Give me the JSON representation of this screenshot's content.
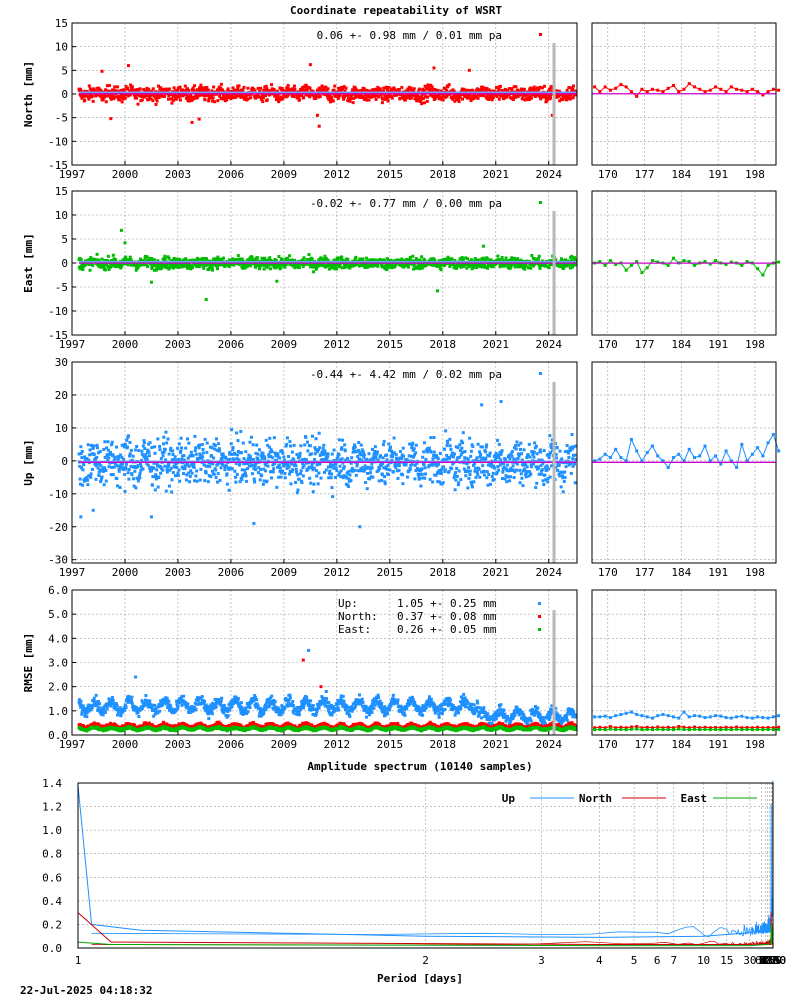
{
  "page_title": "Coordinate repeatability of WSRT",
  "timestamp": "22-Jul-2025 04:18:32",
  "colors": {
    "north": "#ff0000",
    "east": "#00bb00",
    "up": "#1e90ff",
    "trend": "#cc00cc",
    "axis": "#000000",
    "grid": "#a0a0a0"
  },
  "chart_data": [
    {
      "id": "north",
      "type": "scatter",
      "ylabel": "North [mm]",
      "ylim": [
        -15,
        15
      ],
      "yticks": [
        -15,
        -10,
        -5,
        0,
        5,
        10,
        15
      ],
      "xlim": [
        1997,
        2025.6
      ],
      "xticks": [
        1997,
        2000,
        2003,
        2006,
        2009,
        2012,
        2015,
        2018,
        2021,
        2024
      ],
      "annotation": "0.06 +- 0.98 mm /  0.01 mm pa",
      "color": "#ff0000",
      "repeatability_mm": 0.98,
      "mean_mm": 0.06,
      "rate_mm_pa": 0.01,
      "outliers": [
        [
          1998.7,
          4.8
        ],
        [
          1999.2,
          -5.2
        ],
        [
          2000.2,
          6.0
        ],
        [
          2003.8,
          -6.0
        ],
        [
          2004.2,
          -5.3
        ],
        [
          2010.5,
          6.2
        ],
        [
          2010.9,
          -4.5
        ],
        [
          2011.0,
          -6.8
        ],
        [
          2017.5,
          5.5
        ],
        [
          2019.5,
          5.0
        ],
        [
          2024.2,
          -4.5
        ]
      ],
      "recent": {
        "xlim": [
          167,
          202
        ],
        "xticks": [
          170,
          177,
          184,
          191,
          198
        ],
        "values": [
          1.5,
          0.5,
          1.5,
          0.8,
          1.2,
          2.0,
          1.5,
          0.5,
          -0.5,
          1.0,
          0.5,
          1.0,
          0.8,
          0.5,
          1.2,
          1.8,
          0.5,
          1.0,
          2.2,
          1.5,
          1.0,
          0.5,
          0.8,
          1.5,
          1.0,
          0.5,
          1.5,
          1.0,
          0.8,
          0.5,
          1.0,
          0.5,
          -0.2,
          0.5,
          1.0,
          0.8
        ]
      }
    },
    {
      "id": "east",
      "type": "scatter",
      "ylabel": "East [mm]",
      "ylim": [
        -15,
        15
      ],
      "yticks": [
        -15,
        -10,
        -5,
        0,
        5,
        10,
        15
      ],
      "xlim": [
        1997,
        2025.6
      ],
      "xticks": [
        1997,
        2000,
        2003,
        2006,
        2009,
        2012,
        2015,
        2018,
        2021,
        2024
      ],
      "annotation": "-0.02 +- 0.77 mm /  0.00 mm pa",
      "color": "#00bb00",
      "repeatability_mm": 0.77,
      "mean_mm": -0.02,
      "rate_mm_pa": 0.0,
      "outliers": [
        [
          1999.8,
          6.8
        ],
        [
          2000.0,
          4.2
        ],
        [
          2001.5,
          -4.0
        ],
        [
          2004.6,
          -7.6
        ],
        [
          2008.6,
          -3.8
        ],
        [
          2017.7,
          -5.8
        ],
        [
          2020.3,
          3.5
        ]
      ],
      "recent": {
        "xlim": [
          167,
          202
        ],
        "xticks": [
          170,
          177,
          184,
          191,
          198
        ],
        "values": [
          0.0,
          0.3,
          -0.5,
          0.5,
          -0.3,
          0.0,
          -1.5,
          -0.5,
          0.3,
          -2.0,
          -1.0,
          0.5,
          0.2,
          0.0,
          -0.5,
          1.0,
          0.0,
          0.5,
          0.3,
          -0.5,
          0.0,
          0.3,
          -0.2,
          0.5,
          0.0,
          -0.3,
          0.2,
          0.0,
          -0.5,
          0.3,
          0.0,
          -1.2,
          -2.5,
          -0.5,
          0.0,
          0.2
        ]
      }
    },
    {
      "id": "up",
      "type": "scatter",
      "ylabel": "Up [mm]",
      "ylim": [
        -31,
        30
      ],
      "yticks": [
        -30,
        -20,
        -10,
        0,
        10,
        20,
        30
      ],
      "xlim": [
        1997,
        2025.6
      ],
      "xticks": [
        1997,
        2000,
        2003,
        2006,
        2009,
        2012,
        2015,
        2018,
        2021,
        2024
      ],
      "annotation": "-0.44 +- 4.42 mm /  0.02 mm pa",
      "color": "#1e90ff",
      "repeatability_mm": 4.42,
      "mean_mm": -0.44,
      "rate_mm_pa": 0.02,
      "outliers": [
        [
          1997.5,
          -17.0
        ],
        [
          1998.2,
          -15.0
        ],
        [
          2001.5,
          -17.0
        ],
        [
          2007.3,
          -19.0
        ],
        [
          2013.3,
          -20.0
        ],
        [
          2020.2,
          17.0
        ],
        [
          2021.3,
          18.0
        ],
        [
          2024.3,
          -12.0
        ]
      ],
      "recent": {
        "xlim": [
          167,
          202
        ],
        "xticks": [
          170,
          177,
          184,
          191,
          198
        ],
        "values": [
          0.0,
          0.5,
          2.0,
          1.0,
          3.5,
          1.0,
          0.0,
          6.5,
          3.0,
          0.0,
          2.5,
          4.5,
          1.5,
          0.0,
          -2.0,
          1.0,
          2.0,
          0.0,
          3.5,
          1.0,
          1.5,
          4.5,
          0.0,
          1.5,
          -1.0,
          3.0,
          0.0,
          -2.0,
          5.0,
          0.0,
          2.0,
          4.0,
          1.5,
          5.5,
          8.0,
          3.0
        ]
      }
    },
    {
      "id": "rmse",
      "type": "scatter",
      "ylabel": "RMSE [mm]",
      "ylim": [
        0,
        6
      ],
      "yticks": [
        0.0,
        1.0,
        2.0,
        3.0,
        4.0,
        5.0,
        6.0
      ],
      "ytick_labels": [
        "0.0",
        "1.0",
        "2.0",
        "3.0",
        "4.0",
        "5.0",
        "6.0"
      ],
      "xlim": [
        1997,
        2025.6
      ],
      "xticks": [
        1997,
        2000,
        2003,
        2006,
        2009,
        2012,
        2015,
        2018,
        2021,
        2024
      ],
      "legend": [
        {
          "name": "Up:",
          "value": "1.05 +- 0.25 mm",
          "color": "#1e90ff"
        },
        {
          "name": "North:",
          "value": "0.37 +- 0.08 mm",
          "color": "#ff0000"
        },
        {
          "name": "East:",
          "value": "0.26 +- 0.05 mm",
          "color": "#00bb00"
        }
      ],
      "series": [
        {
          "name": "Up",
          "color": "#1e90ff",
          "mean": 1.05,
          "sd": 0.25
        },
        {
          "name": "North",
          "color": "#ff0000",
          "mean": 0.37,
          "sd": 0.08
        },
        {
          "name": "East",
          "color": "#00bb00",
          "mean": 0.26,
          "sd": 0.05
        }
      ],
      "outliers": [
        [
          2010.1,
          3.1,
          "#ff0000"
        ],
        [
          2010.4,
          3.5,
          "#1e90ff"
        ],
        [
          2011.1,
          2.0,
          "#ff0000"
        ],
        [
          2011.4,
          1.8,
          "#1e90ff"
        ],
        [
          2000.6,
          2.4,
          "#1e90ff"
        ]
      ],
      "recent": {
        "xlim": [
          167,
          202
        ],
        "xticks": [
          170,
          177,
          184,
          191,
          198
        ],
        "up": [
          0.75,
          0.75,
          0.78,
          0.72,
          0.8,
          0.85,
          0.9,
          0.95,
          0.85,
          0.8,
          0.75,
          0.7,
          0.8,
          0.85,
          0.8,
          0.75,
          0.7,
          0.95,
          0.75,
          0.8,
          0.78,
          0.72,
          0.75,
          0.8,
          0.78,
          0.72,
          0.7,
          0.75,
          0.78,
          0.72,
          0.7,
          0.75,
          0.72,
          0.7,
          0.75,
          0.8
        ],
        "north": [
          0.3,
          0.32,
          0.3,
          0.35,
          0.3,
          0.32,
          0.3,
          0.33,
          0.35,
          0.3,
          0.32,
          0.3,
          0.33,
          0.3,
          0.32,
          0.3,
          0.35,
          0.32,
          0.3,
          0.33,
          0.3,
          0.32,
          0.3,
          0.31,
          0.3,
          0.32,
          0.3,
          0.33,
          0.3,
          0.31,
          0.3,
          0.32,
          0.3,
          0.31,
          0.3,
          0.32
        ],
        "east": [
          0.22,
          0.23,
          0.22,
          0.25,
          0.22,
          0.23,
          0.22,
          0.24,
          0.25,
          0.22,
          0.23,
          0.22,
          0.24,
          0.22,
          0.23,
          0.22,
          0.25,
          0.23,
          0.22,
          0.24,
          0.22,
          0.23,
          0.22,
          0.23,
          0.22,
          0.23,
          0.22,
          0.24,
          0.22,
          0.23,
          0.22,
          0.23,
          0.22,
          0.23,
          0.22,
          0.23
        ]
      }
    },
    {
      "id": "spectrum",
      "type": "line",
      "title": "Amplitude spectrum (10140 samples)",
      "xlabel": "Period [days]",
      "x_scale": "reciprocal",
      "xticks": [
        1,
        2,
        3,
        4,
        5,
        6,
        7,
        10,
        15,
        30,
        61,
        91,
        122,
        183,
        365,
        730,
        2190,
        4380,
        8760
      ],
      "ylim": [
        0,
        1.4
      ],
      "yticks": [
        0.0,
        0.2,
        0.4,
        0.6,
        0.8,
        1.0,
        1.2,
        1.4
      ],
      "ytick_labels": [
        "0.0",
        "0.2",
        "0.4",
        "0.6",
        "0.8",
        "1.0",
        "1.2",
        "1.4"
      ],
      "legend": [
        "Up",
        "North",
        "East"
      ],
      "series": [
        {
          "name": "Up",
          "color": "#1e90ff",
          "points": [
            [
              8760,
              1.42
            ],
            [
              6000,
              1.42
            ],
            [
              4380,
              1.38
            ],
            [
              3000,
              1.0
            ],
            [
              2500,
              0.55
            ],
            [
              2190,
              0.52
            ],
            [
              1800,
              0.45
            ],
            [
              1500,
              0.4
            ],
            [
              1300,
              0.3
            ],
            [
              1100,
              0.38
            ],
            [
              950,
              0.32
            ],
            [
              800,
              0.27
            ],
            [
              730,
              0.27
            ],
            [
              650,
              0.38
            ],
            [
              560,
              0.3
            ],
            [
              480,
              0.42
            ],
            [
              420,
              0.35
            ],
            [
              380,
              0.75
            ],
            [
              365,
              1.22
            ],
            [
              350,
              0.7
            ],
            [
              330,
              0.35
            ],
            [
              300,
              0.25
            ],
            [
              250,
              0.2
            ],
            [
              183,
              0.2
            ],
            [
              122,
              0.17
            ],
            [
              61,
              0.15
            ],
            [
              30,
              0.13
            ],
            [
              10,
              0.1
            ],
            [
              4,
              0.09
            ],
            [
              2,
              0.1
            ],
            [
              1.1,
              0.15
            ],
            [
              1.02,
              0.2
            ],
            [
              1.0,
              1.38
            ]
          ]
        },
        {
          "name": "North",
          "color": "#cc0000",
          "points": [
            [
              8760,
              0.27
            ],
            [
              6000,
              0.2
            ],
            [
              4380,
              0.16
            ],
            [
              3000,
              0.13
            ],
            [
              2190,
              0.2
            ],
            [
              1800,
              0.15
            ],
            [
              1300,
              0.1
            ],
            [
              1000,
              0.06
            ],
            [
              800,
              0.03
            ],
            [
              600,
              0.05
            ],
            [
              500,
              0.1
            ],
            [
              420,
              0.13
            ],
            [
              365,
              0.3
            ],
            [
              330,
              0.1
            ],
            [
              250,
              0.05
            ],
            [
              122,
              0.04
            ],
            [
              30,
              0.03
            ],
            [
              4,
              0.03
            ],
            [
              1.05,
              0.05
            ],
            [
              1.0,
              0.3
            ]
          ]
        },
        {
          "name": "East",
          "color": "#00aa00",
          "points": [
            [
              8760,
              0.1
            ],
            [
              6000,
              0.06
            ],
            [
              4380,
              0.04
            ],
            [
              3000,
              0.04
            ],
            [
              2190,
              0.2
            ],
            [
              1800,
              0.15
            ],
            [
              1400,
              0.07
            ],
            [
              1000,
              0.1
            ],
            [
              800,
              0.05
            ],
            [
              650,
              0.04
            ],
            [
              500,
              0.15
            ],
            [
              420,
              0.05
            ],
            [
              365,
              0.2
            ],
            [
              330,
              0.06
            ],
            [
              250,
              0.04
            ],
            [
              122,
              0.03
            ],
            [
              30,
              0.02
            ],
            [
              4,
              0.02
            ],
            [
              1.05,
              0.03
            ],
            [
              1.0,
              0.05
            ]
          ]
        }
      ]
    }
  ]
}
